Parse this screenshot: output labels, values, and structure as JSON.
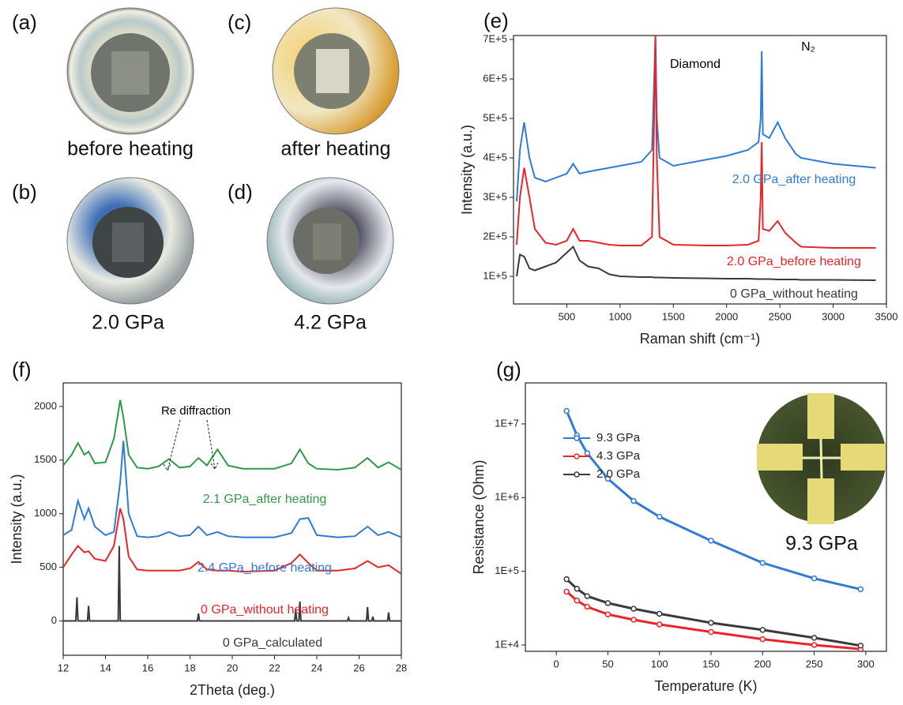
{
  "photos": [
    {
      "panel_label": "(a)",
      "caption": "before heating"
    },
    {
      "panel_label": "(c)",
      "caption": "after heating"
    },
    {
      "panel_label": "(b)",
      "caption": "2.0 GPa"
    },
    {
      "panel_label": "(d)",
      "caption": "4.2 GPa"
    }
  ],
  "chart_data": [
    {
      "type": "line",
      "panel_label": "(e)",
      "x_label": "Raman shift (cm⁻¹)",
      "y_label": "Intensity (a.u.)",
      "annotations": [
        "Diamond",
        "N₂"
      ],
      "xlim": [
        0,
        3500
      ],
      "xticks": [
        500,
        1000,
        1500,
        2000,
        2500,
        3000,
        3500
      ],
      "ylim": [
        30000,
        710000
      ],
      "yticks": [
        {
          "value": 100000,
          "label": "1E+5"
        },
        {
          "value": 200000,
          "label": "2E+5"
        },
        {
          "value": 300000,
          "label": "3E+5"
        },
        {
          "value": 400000,
          "label": "4E+5"
        },
        {
          "value": 500000,
          "label": "5E+5"
        },
        {
          "value": 600000,
          "label": "6E+5"
        },
        {
          "value": 700000,
          "label": "7E+5"
        }
      ],
      "x": [
        30,
        60,
        100,
        150,
        200,
        300,
        400,
        500,
        560,
        620,
        700,
        800,
        900,
        1000,
        1200,
        1300,
        1320,
        1332,
        1345,
        1370,
        1500,
        1800,
        2000,
        2200,
        2300,
        2320,
        2330,
        2340,
        2400,
        2480,
        2550,
        2650,
        2700,
        3000,
        3400
      ],
      "series": [
        {
          "name": "2.0 GPa_after heating",
          "color": "#2f7bd6",
          "values": [
            290000,
            420000,
            490000,
            400000,
            350000,
            340000,
            350000,
            360000,
            385000,
            360000,
            365000,
            370000,
            375000,
            380000,
            390000,
            420000,
            600000,
            710000,
            500000,
            400000,
            380000,
            395000,
            405000,
            420000,
            440000,
            500000,
            670000,
            460000,
            450000,
            490000,
            450000,
            410000,
            400000,
            385000,
            375000
          ]
        },
        {
          "name": "2.0 GPa_before heating",
          "color": "#e8262a",
          "values": [
            180000,
            300000,
            375000,
            300000,
            220000,
            185000,
            180000,
            190000,
            220000,
            190000,
            190000,
            185000,
            180000,
            178000,
            178000,
            200000,
            500000,
            710000,
            400000,
            200000,
            180000,
            178000,
            178000,
            180000,
            190000,
            300000,
            440000,
            220000,
            215000,
            240000,
            210000,
            185000,
            175000,
            172000,
            172000
          ]
        },
        {
          "name": "0 GPa_without heating",
          "color": "#3a3a3a",
          "values": [
            100000,
            155000,
            150000,
            120000,
            115000,
            125000,
            135000,
            160000,
            175000,
            140000,
            125000,
            120000,
            105000,
            100000,
            98000,
            98000,
            97000,
            97000,
            97000,
            97000,
            96000,
            95000,
            94000,
            94000,
            93000,
            93000,
            93000,
            93000,
            93000,
            92000,
            92000,
            92000,
            91000,
            91000,
            90000
          ]
        }
      ]
    },
    {
      "type": "line",
      "panel_label": "(f)",
      "x_label": "2Theta (deg.)",
      "y_label": "Intensity (a.u.)",
      "annotations": [
        "Re diffraction"
      ],
      "xlim": [
        12,
        28
      ],
      "xticks": [
        12,
        14,
        16,
        18,
        20,
        22,
        24,
        26,
        28
      ],
      "ylim": [
        -320,
        2220
      ],
      "yticks": [
        0,
        500,
        1000,
        1500,
        2000
      ],
      "x": [
        12,
        12.4,
        12.7,
        13,
        13.2,
        13.5,
        14,
        14.4,
        14.7,
        14.85,
        15.1,
        15.5,
        16,
        16.5,
        17,
        17.5,
        18,
        18.4,
        18.8,
        19.3,
        19.8,
        20.5,
        22,
        22.8,
        23.2,
        23.6,
        24,
        25,
        25.8,
        26.4,
        26.9,
        27.4,
        28
      ],
      "series": [
        {
          "name": "2.1 GPa_after heating",
          "color": "#2e9a4a",
          "values": [
            1450,
            1550,
            1660,
            1550,
            1580,
            1470,
            1480,
            1700,
            2060,
            1900,
            1550,
            1430,
            1420,
            1440,
            1510,
            1430,
            1440,
            1520,
            1450,
            1600,
            1450,
            1420,
            1420,
            1470,
            1600,
            1470,
            1420,
            1410,
            1430,
            1520,
            1430,
            1480,
            1410
          ]
        },
        {
          "name": "2.4 GPa_before heating",
          "color": "#2f7bd6",
          "values": [
            800,
            850,
            1120,
            950,
            1050,
            880,
            800,
            830,
            1300,
            1680,
            1000,
            790,
            780,
            790,
            830,
            790,
            800,
            880,
            800,
            830,
            790,
            780,
            780,
            820,
            950,
            960,
            800,
            780,
            790,
            880,
            800,
            830,
            780
          ]
        },
        {
          "name": "0 GPa_without heating",
          "color": "#e8262a",
          "values": [
            500,
            620,
            700,
            640,
            650,
            580,
            560,
            700,
            1050,
            950,
            600,
            480,
            470,
            470,
            470,
            470,
            490,
            550,
            480,
            470,
            470,
            460,
            470,
            540,
            620,
            540,
            470,
            470,
            490,
            560,
            500,
            520,
            440
          ]
        },
        {
          "name": "0 GPa_calculated",
          "color": "#3a3a3a",
          "x": [
            12,
            12.6,
            12.65,
            12.7,
            13.15,
            13.2,
            13.25,
            14.6,
            14.65,
            14.7,
            18.35,
            18.4,
            18.45,
            22.95,
            23,
            23.05,
            23.15,
            23.2,
            23.25,
            25.45,
            25.5,
            25.55,
            26.35,
            26.4,
            26.45,
            26.6,
            26.65,
            26.7,
            27.35,
            27.4,
            27.45,
            28
          ],
          "values": [
            0,
            0,
            220,
            0,
            0,
            140,
            0,
            0,
            700,
            0,
            0,
            70,
            0,
            0,
            110,
            0,
            0,
            180,
            0,
            0,
            30,
            0,
            0,
            130,
            0,
            0,
            40,
            0,
            0,
            80,
            0,
            0
          ]
        }
      ]
    },
    {
      "type": "line",
      "panel_label": "(g)",
      "x_label": "Temperature (K)",
      "y_label": "Resistance (Ohm)",
      "inset_label": "9.3 GPa",
      "log_y": true,
      "markers": true,
      "legend": "upper left",
      "xlim": [
        -30,
        320
      ],
      "xticks": [
        0,
        50,
        100,
        150,
        200,
        250,
        300
      ],
      "ylim": [
        8200,
        36000000
      ],
      "yticks": [
        {
          "value": 10000,
          "label": "1E+4"
        },
        {
          "value": 100000,
          "label": "1E+5"
        },
        {
          "value": 1000000,
          "label": "1E+6"
        },
        {
          "value": 10000000,
          "label": "1E+7"
        }
      ],
      "x": [
        10,
        20,
        30,
        50,
        75,
        100,
        150,
        200,
        250,
        295
      ],
      "series": [
        {
          "name": "9.3 GPa",
          "color": "#2f7bd6",
          "values": [
            15000000,
            7000000,
            4000000,
            1800000,
            900000,
            550000,
            260000,
            130000,
            80000,
            57000
          ]
        },
        {
          "name": "4.3 GPa",
          "color": "#e8262a",
          "values": [
            53000,
            40000,
            33000,
            26000,
            22000,
            19000,
            15000,
            12000,
            10000,
            8800
          ]
        },
        {
          "name": "2.0 GPa",
          "color": "#3a3a3a",
          "values": [
            78000,
            58000,
            46000,
            37000,
            31000,
            26500,
            20000,
            16000,
            12500,
            9800
          ]
        }
      ]
    }
  ]
}
